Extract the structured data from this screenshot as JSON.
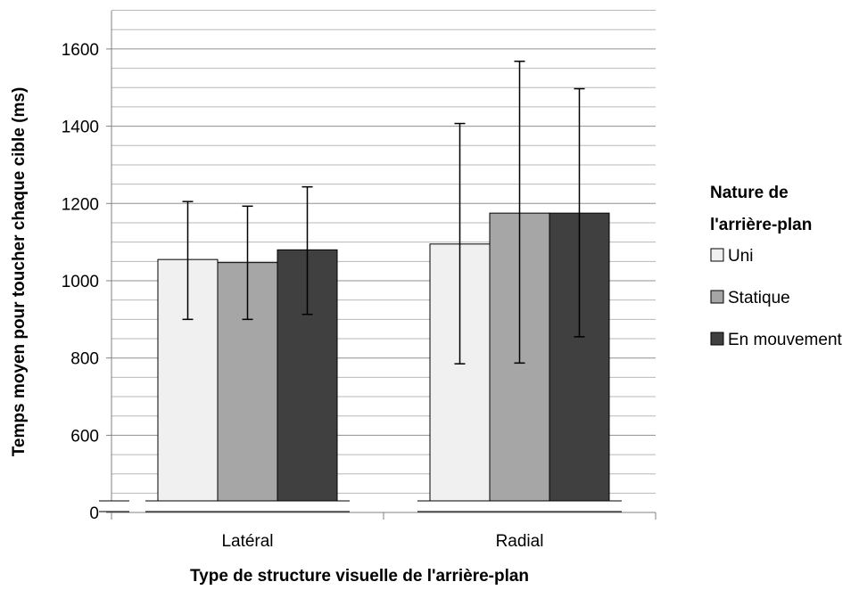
{
  "chart_data": {
    "type": "bar",
    "xlabel": "Type de structure visuelle de l'arrière-plan",
    "ylabel": "Temps moyen pour toucher chaque cible (ms)",
    "categories": [
      "Latéral",
      "Radial"
    ],
    "y_ticks": [
      0,
      600,
      800,
      1000,
      1200,
      1400,
      1600
    ],
    "ylim_broken": [
      400,
      1700
    ],
    "axis_break": true,
    "grid": true,
    "legend": {
      "title_lines": [
        "Nature de",
        "l'arrière-plan"
      ],
      "placement": "right"
    },
    "series": [
      {
        "name": "Uni",
        "color": "#f0f0f0",
        "values": [
          1055,
          1095
        ],
        "err_low": [
          900,
          785
        ],
        "err_high": [
          1205,
          1407
        ]
      },
      {
        "name": "Statique",
        "color": "#a6a6a6",
        "values": [
          1047,
          1175
        ],
        "err_low": [
          900,
          787
        ],
        "err_high": [
          1193,
          1568
        ]
      },
      {
        "name": "En mouvement",
        "color": "#404040",
        "values": [
          1080,
          1175
        ],
        "err_low": [
          913,
          855
        ],
        "err_high": [
          1243,
          1497
        ]
      }
    ]
  }
}
